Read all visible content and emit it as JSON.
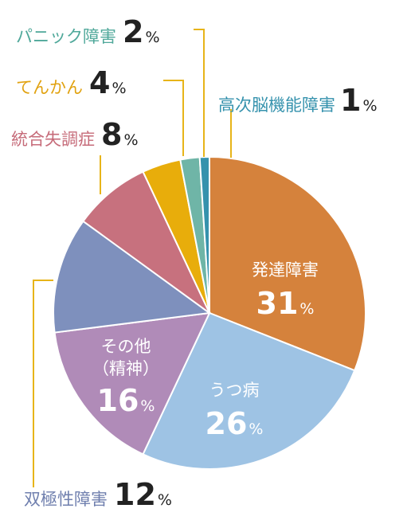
{
  "chart_data": {
    "type": "pie",
    "unit": "%",
    "start_angle_deg": 0,
    "direction": "clockwise",
    "leader_color": "#e7b419",
    "slices": [
      {
        "label": "発達障害",
        "value": 31,
        "color": "#d5823c"
      },
      {
        "label": "うつ病",
        "value": 26,
        "color": "#9ec3e4"
      },
      {
        "label": "その他",
        "label2": "（精神）",
        "value": 16,
        "color": "#b08bb8"
      },
      {
        "label": "双極性障害",
        "value": 12,
        "color": "#7e90bd"
      },
      {
        "label": "統合失調症",
        "value": 8,
        "color": "#c7717e"
      },
      {
        "label": "てんかん",
        "value": 4,
        "color": "#e8ad0b"
      },
      {
        "label": "パニック障害",
        "value": 2,
        "color": "#6fb5a7"
      },
      {
        "label": "高次脳機能障害",
        "value": 1,
        "color": "#3592ad"
      }
    ]
  }
}
